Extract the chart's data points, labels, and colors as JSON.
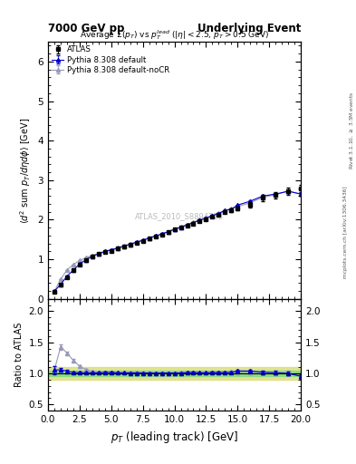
{
  "title_left": "7000 GeV pp",
  "title_right": "Underlying Event",
  "panel_title": "Average $\\Sigma(p_T)$ vs $p_T^{lead}$ ($|\\eta| < 2.5$, $p_T > 0.5$ GeV)",
  "watermark": "ATLAS_2010_S8894728",
  "right_label": "mcplots.cern.ch [arXiv:1306.3436]",
  "right_label2": "Rivet 3.1.10, $\\geq$ 3.5M events",
  "xlabel": "$p_T$ (leading track) [GeV]",
  "ylabel_main": "$\\langle d^2$ sum $p_T/d\\eta d\\phi\\rangle$ [GeV]",
  "ylabel_ratio": "Ratio to ATLAS",
  "xlim": [
    0,
    20
  ],
  "ylim_main": [
    0,
    6.5
  ],
  "ylim_ratio": [
    0.4,
    2.2
  ],
  "ratio_yticks": [
    0.5,
    1.0,
    1.5,
    2.0
  ],
  "atlas_x": [
    0.5,
    1.0,
    1.5,
    2.0,
    2.5,
    3.0,
    3.5,
    4.0,
    4.5,
    5.0,
    5.5,
    6.0,
    6.5,
    7.0,
    7.5,
    8.0,
    8.5,
    9.0,
    9.5,
    10.0,
    10.5,
    11.0,
    11.5,
    12.0,
    12.5,
    13.0,
    13.5,
    14.0,
    14.5,
    15.0,
    16.0,
    17.0,
    18.0,
    19.0,
    20.0
  ],
  "atlas_y": [
    0.18,
    0.35,
    0.55,
    0.72,
    0.87,
    0.98,
    1.07,
    1.13,
    1.18,
    1.22,
    1.27,
    1.32,
    1.37,
    1.42,
    1.47,
    1.53,
    1.58,
    1.63,
    1.69,
    1.75,
    1.8,
    1.85,
    1.9,
    1.97,
    2.02,
    2.07,
    2.13,
    2.2,
    2.23,
    2.28,
    2.38,
    2.55,
    2.62,
    2.72,
    2.78
  ],
  "atlas_yerr": [
    0.01,
    0.01,
    0.01,
    0.01,
    0.01,
    0.01,
    0.01,
    0.01,
    0.01,
    0.01,
    0.01,
    0.01,
    0.01,
    0.01,
    0.01,
    0.01,
    0.01,
    0.01,
    0.01,
    0.01,
    0.02,
    0.02,
    0.02,
    0.02,
    0.02,
    0.02,
    0.03,
    0.03,
    0.03,
    0.05,
    0.06,
    0.07,
    0.08,
    0.09,
    0.1
  ],
  "pythia_default_x": [
    0.5,
    1.0,
    1.5,
    2.0,
    2.5,
    3.0,
    3.5,
    4.0,
    4.5,
    5.0,
    5.5,
    6.0,
    6.5,
    7.0,
    7.5,
    8.0,
    8.5,
    9.0,
    9.5,
    10.0,
    10.5,
    11.0,
    11.5,
    12.0,
    12.5,
    13.0,
    13.5,
    14.0,
    14.5,
    15.0,
    16.0,
    17.0,
    18.0,
    19.0,
    20.0
  ],
  "pythia_default_y": [
    0.19,
    0.37,
    0.57,
    0.73,
    0.88,
    0.99,
    1.08,
    1.14,
    1.2,
    1.24,
    1.28,
    1.33,
    1.38,
    1.43,
    1.48,
    1.54,
    1.59,
    1.64,
    1.7,
    1.76,
    1.81,
    1.87,
    1.93,
    1.99,
    2.04,
    2.1,
    2.16,
    2.23,
    2.27,
    2.37,
    2.47,
    2.6,
    2.65,
    2.72,
    2.65
  ],
  "pythia_default_yerr": [
    0.005,
    0.005,
    0.005,
    0.005,
    0.005,
    0.005,
    0.005,
    0.005,
    0.005,
    0.005,
    0.005,
    0.005,
    0.005,
    0.005,
    0.005,
    0.005,
    0.005,
    0.005,
    0.005,
    0.005,
    0.008,
    0.008,
    0.008,
    0.008,
    0.008,
    0.008,
    0.01,
    0.01,
    0.01,
    0.015,
    0.02,
    0.025,
    0.03,
    0.035,
    0.04
  ],
  "pythia_nocr_x": [
    0.5,
    1.0,
    1.5,
    2.0,
    2.5,
    3.0,
    3.5,
    4.0,
    4.5,
    5.0,
    5.5,
    6.0,
    6.5,
    7.0,
    7.5,
    8.0,
    8.5,
    9.0,
    9.5,
    10.0,
    10.5,
    11.0,
    11.5,
    12.0,
    12.5,
    13.0,
    13.5,
    14.0,
    14.5,
    15.0,
    16.0,
    17.0,
    18.0,
    19.0,
    20.0
  ],
  "pythia_nocr_y": [
    0.19,
    0.5,
    0.73,
    0.87,
    0.97,
    1.04,
    1.1,
    1.15,
    1.2,
    1.24,
    1.29,
    1.34,
    1.39,
    1.44,
    1.49,
    1.54,
    1.59,
    1.64,
    1.7,
    1.76,
    1.82,
    1.88,
    1.94,
    2.0,
    2.05,
    2.11,
    2.17,
    2.24,
    2.28,
    2.33,
    2.43,
    2.57,
    2.63,
    2.73,
    2.65
  ],
  "pythia_nocr_yerr": [
    0.005,
    0.005,
    0.005,
    0.005,
    0.005,
    0.005,
    0.005,
    0.005,
    0.005,
    0.005,
    0.005,
    0.005,
    0.005,
    0.005,
    0.005,
    0.005,
    0.005,
    0.005,
    0.005,
    0.005,
    0.008,
    0.008,
    0.008,
    0.008,
    0.008,
    0.008,
    0.01,
    0.01,
    0.01,
    0.015,
    0.02,
    0.025,
    0.03,
    0.035,
    0.04
  ],
  "atlas_color": "#000000",
  "pythia_default_color": "#0000cc",
  "pythia_nocr_color": "#9999bb",
  "green_band": [
    0.95,
    1.05
  ],
  "yellow_band": [
    0.9,
    1.1
  ],
  "green_color": "#80dd80",
  "yellow_color": "#dddd80",
  "legend_labels": [
    "ATLAS",
    "Pythia 8.308 default",
    "Pythia 8.308 default-noCR"
  ]
}
